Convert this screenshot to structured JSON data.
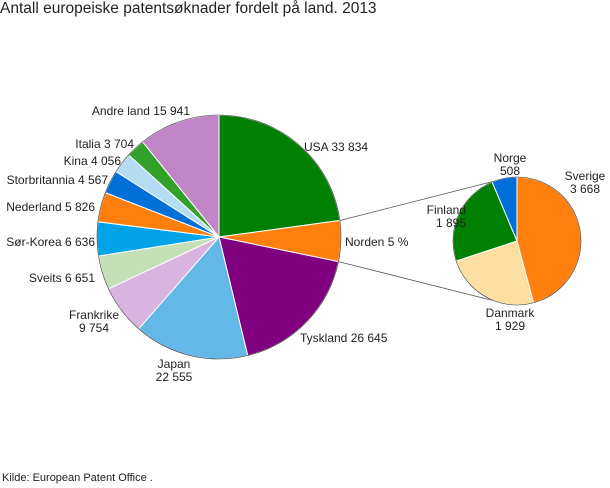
{
  "title": "Antall europeiske patentsøknader fordelt på land. 2013",
  "source": "Kilde: European Patent Office .",
  "chart_data": [
    {
      "type": "pie",
      "slices": [
        {
          "label": "USA",
          "value": 33834,
          "display": "USA 33 834",
          "color": "#008000"
        },
        {
          "label": "Norden",
          "value": 8000,
          "display": "Norden 5 %",
          "color": "#ff7f0e"
        },
        {
          "label": "Tyskland",
          "value": 26645,
          "display": "Tyskland 26 645",
          "color": "#800080"
        },
        {
          "label": "Japan",
          "value": 22555,
          "display": [
            "Japan",
            "22 555"
          ],
          "color": "#63b8e8"
        },
        {
          "label": "Frankrike",
          "value": 9754,
          "display": [
            "Frankrike",
            "9 754"
          ],
          "color": "#dab4e0"
        },
        {
          "label": "Sveits",
          "value": 6651,
          "display": "Sveits  6 651",
          "color": "#c3e0b6"
        },
        {
          "label": "Sør-Korea",
          "value": 6636,
          "display": "Sør-Korea 6 636",
          "color": "#00a4e6"
        },
        {
          "label": "Nederland",
          "value": 5826,
          "display": "Nederland 5 826",
          "color": "#ff7f0e"
        },
        {
          "label": "Storbritannia",
          "value": 4567,
          "display": "Storbritannia 4 567",
          "color": "#0070d8"
        },
        {
          "label": "Kina",
          "value": 4056,
          "display": "Kina 4 056",
          "color": "#b4dcf2"
        },
        {
          "label": "Italia",
          "value": 3704,
          "display": "Italia 3 704",
          "color": "#33a02c"
        },
        {
          "label": "Andre land",
          "value": 15941,
          "display": "Andre land 15 941",
          "color": "#c286c8"
        }
      ]
    },
    {
      "type": "pie",
      "slices": [
        {
          "label": "Sverige",
          "value": 3668,
          "display": [
            "Sverige",
            "3 668"
          ],
          "color": "#ff7f0e"
        },
        {
          "label": "Danmark",
          "value": 1929,
          "display": [
            "Danmark",
            "1 929"
          ],
          "color": "#fddfa2"
        },
        {
          "label": "Finland",
          "value": 1895,
          "display": [
            "Finland",
            "1 895"
          ],
          "color": "#008000"
        },
        {
          "label": "Norge",
          "value": 508,
          "display": [
            "Norge",
            "508"
          ],
          "color": "#0070d8"
        }
      ]
    }
  ]
}
